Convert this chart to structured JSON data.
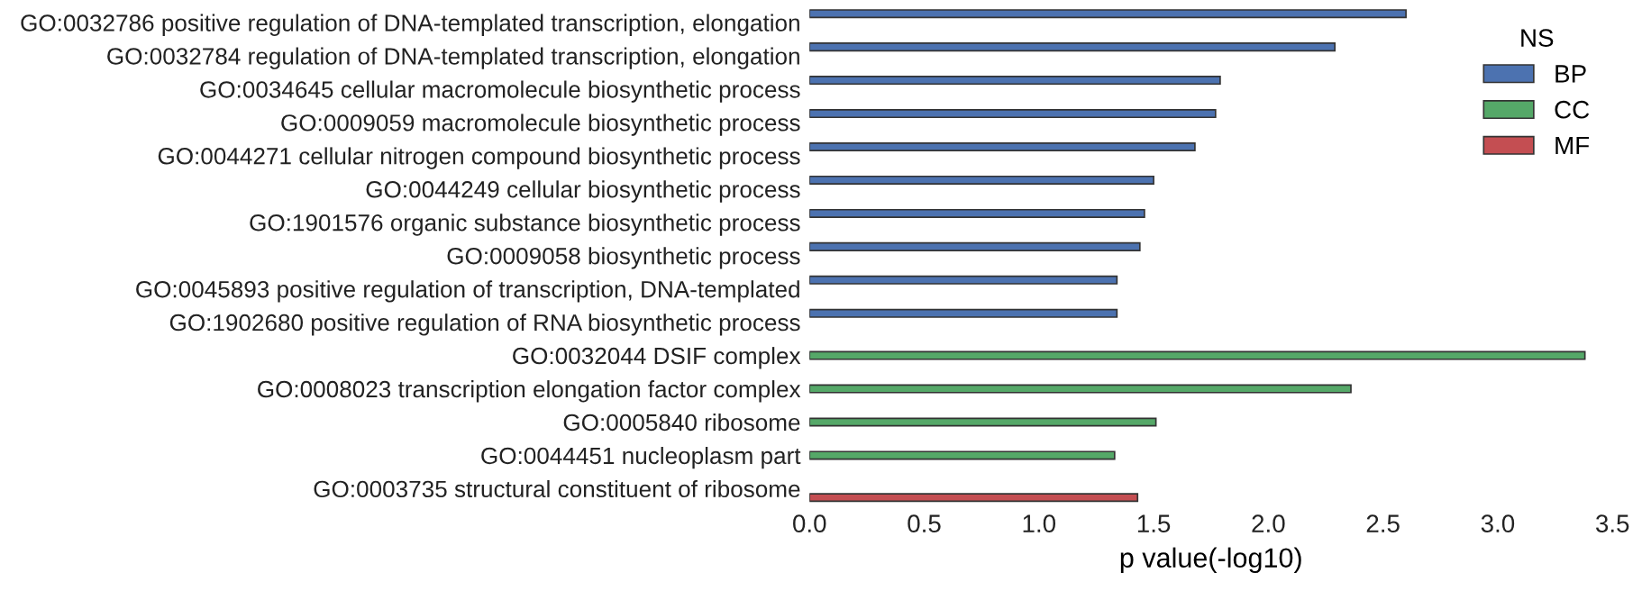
{
  "chart_data": {
    "type": "bar",
    "orientation": "horizontal",
    "xlabel": "p value(-log10)",
    "legend_title": "NS",
    "legend": "top right",
    "grid": false,
    "categories": [
      "GO:0032786 positive regulation of DNA-templated transcription, elongation",
      "GO:0032784 regulation of DNA-templated transcription, elongation",
      "GO:0034645 cellular macromolecule biosynthetic process",
      "GO:0009059 macromolecule biosynthetic process",
      "GO:0044271 cellular nitrogen compound biosynthetic process",
      "GO:0044249 cellular biosynthetic process",
      "GO:1901576 organic substance biosynthetic process",
      "GO:0009058 biosynthetic process",
      "GO:0045893 positive regulation of transcription, DNA-templated",
      "GO:1902680 positive regulation of RNA biosynthetic process",
      "GO:0032044 DSIF complex",
      "GO:0008023 transcription elongation factor complex",
      "GO:0005840 ribosome",
      "GO:0044451 nucleoplasm part",
      "GO:0003735 structural constituent of ribosome"
    ],
    "series": [
      {
        "name": "BP",
        "color": "#4c72b0",
        "values": [
          2.6,
          2.29,
          1.79,
          1.77,
          1.68,
          1.5,
          1.46,
          1.44,
          1.34,
          1.34,
          null,
          null,
          null,
          null,
          null
        ]
      },
      {
        "name": "CC",
        "color": "#55a868",
        "values": [
          null,
          null,
          null,
          null,
          null,
          null,
          null,
          null,
          null,
          null,
          3.38,
          2.36,
          1.51,
          1.33,
          null
        ]
      },
      {
        "name": "MF",
        "color": "#c44e52",
        "values": [
          null,
          null,
          null,
          null,
          null,
          null,
          null,
          null,
          null,
          null,
          null,
          null,
          null,
          null,
          1.43
        ]
      }
    ],
    "xlim": [
      0,
      3.5
    ],
    "xticks": [
      {
        "value": 0,
        "label": "0.0"
      },
      {
        "value": 0.5,
        "label": "0.5"
      },
      {
        "value": 1,
        "label": "1.0"
      },
      {
        "value": 1.5,
        "label": "1.5"
      },
      {
        "value": 2,
        "label": "2.0"
      },
      {
        "value": 2.5,
        "label": "2.5"
      },
      {
        "value": 3,
        "label": "3.0"
      },
      {
        "value": 3.5,
        "label": "3.5"
      }
    ]
  }
}
